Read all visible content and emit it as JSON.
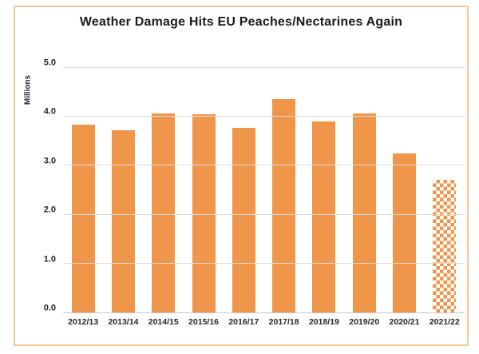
{
  "chart_data": {
    "type": "bar",
    "title": "Weather Damage Hits EU Peaches/Nectarines Again",
    "ylabel": "Millions",
    "xlabel": "",
    "categories": [
      "2012/13",
      "2013/14",
      "2014/15",
      "2015/16",
      "2016/17",
      "2017/18",
      "2018/19",
      "2019/20",
      "2020/21",
      "2021/22"
    ],
    "values": [
      3.83,
      3.72,
      4.05,
      4.04,
      3.77,
      4.35,
      3.89,
      4.06,
      3.24,
      2.71
    ],
    "ylim": [
      0,
      5
    ],
    "ytick_labels": [
      "0.0",
      "1.0",
      "2.0",
      "3.0",
      "4.0",
      "5.0"
    ],
    "grid": true,
    "legend": "none",
    "pattern_bar_index": 9,
    "pattern_style": "checkerboard",
    "colors": {
      "bar": "#F0964A",
      "pattern_bg": "#FFFFFF",
      "frame_border": "#F6C79B",
      "gridline": "#DCDCDC",
      "baseline": "#C9C9C9",
      "text": "#262626",
      "title": "#1A1A1A"
    }
  }
}
